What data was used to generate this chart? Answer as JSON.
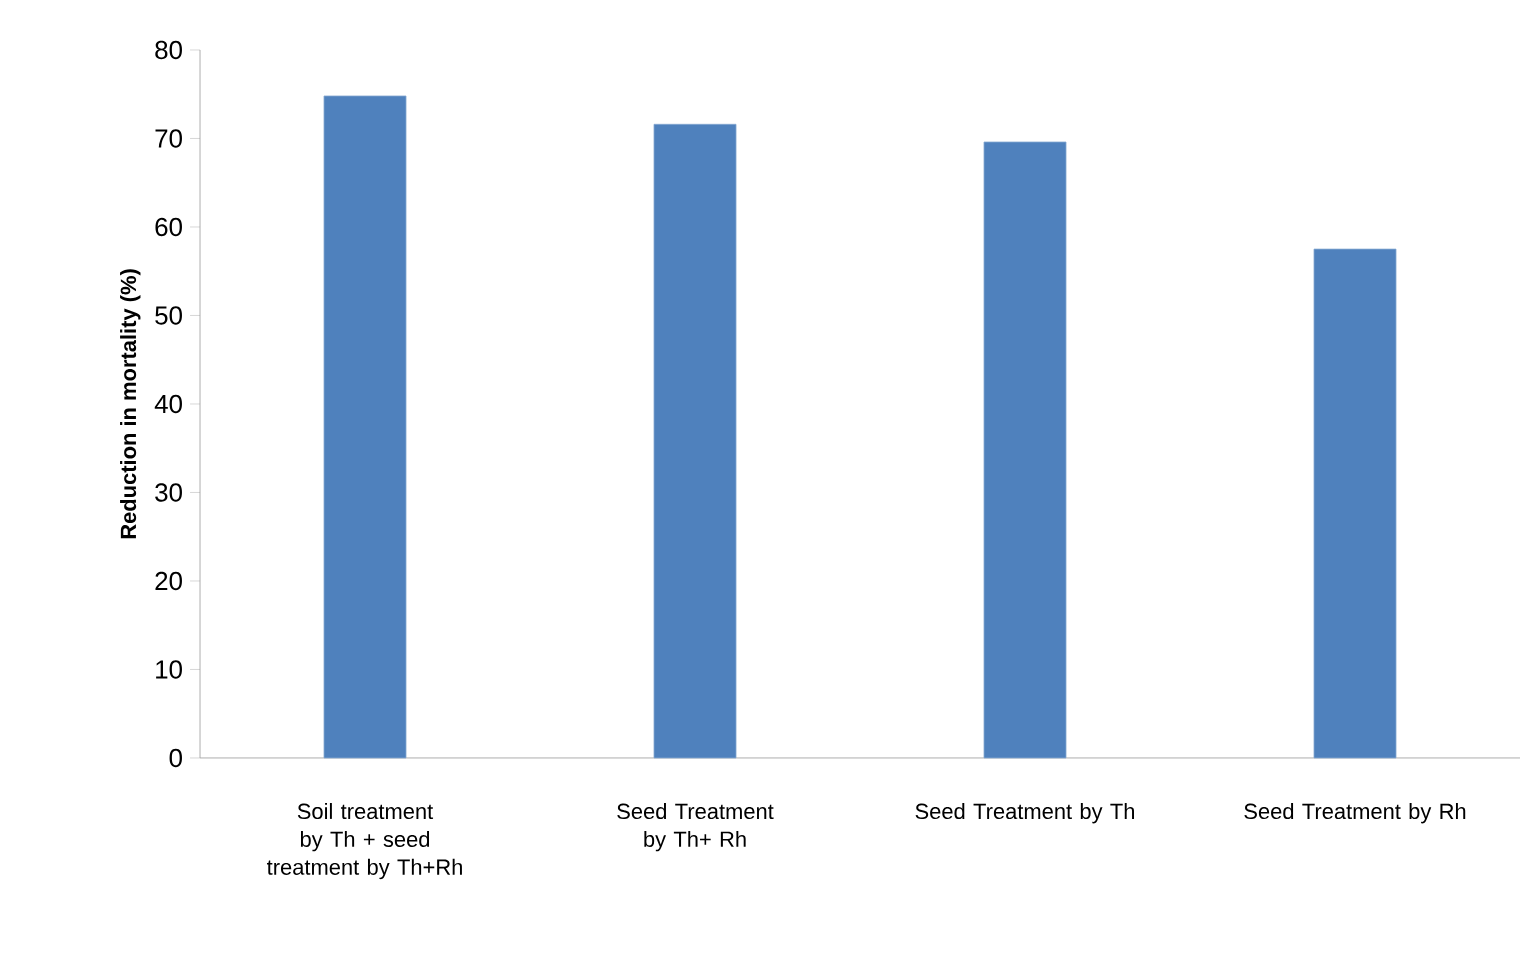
{
  "chart_data": {
    "type": "bar",
    "categories": [
      "Soil treatment by Th + seed treatment by Th+Rh",
      "Seed Treatment by Th+ Rh",
      "Seed Treatment by Th",
      "Seed Treatment by Rh"
    ],
    "values": [
      74.8,
      71.6,
      69.6,
      57.5
    ],
    "color": "#4f81bd",
    "ylabel": "Reduction in mortality (%)",
    "ylim": [
      0,
      80
    ],
    "yticks": [
      0,
      10,
      20,
      30,
      40,
      50,
      60,
      70,
      80
    ]
  }
}
